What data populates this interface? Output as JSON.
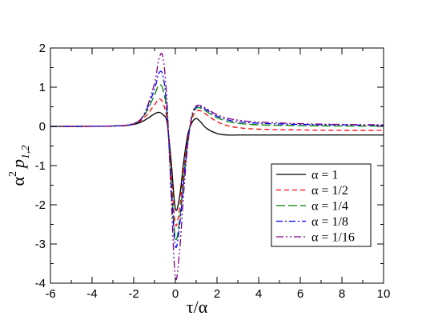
{
  "chart_data": {
    "type": "line",
    "xlabel": "τ/α",
    "ylabel": {
      "base": "α",
      "sup": "2",
      "main": "p",
      "sub": "1,2"
    },
    "xlim": [
      -6,
      10
    ],
    "ylim": [
      -4,
      2
    ],
    "xticks": [
      -6,
      -4,
      -2,
      0,
      2,
      4,
      6,
      8,
      10
    ],
    "yticks": [
      -4,
      -3,
      -2,
      -1,
      0,
      1,
      2
    ],
    "grid": false,
    "legend_position": "right",
    "series": [
      {
        "name": "α = 1",
        "color": "#000000",
        "dash": "solid",
        "x": [
          -6,
          -3,
          -2,
          -1.5,
          -1,
          -0.8,
          -0.6,
          -0.4,
          -0.2,
          0,
          0.2,
          0.4,
          0.6,
          0.8,
          1,
          1.2,
          1.5,
          2,
          2.5,
          3,
          4,
          6,
          8,
          10
        ],
        "y": [
          0,
          0.01,
          0.05,
          0.15,
          0.32,
          0.36,
          0.3,
          0.1,
          -0.9,
          -2.1,
          -1.8,
          -0.9,
          -0.2,
          0.1,
          0.2,
          0.12,
          -0.05,
          -0.18,
          -0.22,
          -0.22,
          -0.22,
          -0.22,
          -0.22,
          -0.22
        ]
      },
      {
        "name": "α = 1/2",
        "color": "#ff0000",
        "dash": "dashed",
        "x": [
          -6,
          -3,
          -2,
          -1.5,
          -1,
          -0.8,
          -0.6,
          -0.4,
          -0.2,
          0,
          0.2,
          0.4,
          0.6,
          0.8,
          1,
          1.2,
          1.5,
          2,
          2.5,
          3,
          4,
          6,
          8,
          10
        ],
        "y": [
          0,
          0.01,
          0.06,
          0.22,
          0.55,
          0.7,
          0.6,
          0.15,
          -1.2,
          -2.5,
          -2.1,
          -1.1,
          -0.3,
          0.2,
          0.38,
          0.4,
          0.3,
          0.12,
          0.02,
          -0.03,
          -0.07,
          -0.09,
          -0.1,
          -0.1
        ]
      },
      {
        "name": "α = 1/4",
        "color": "#008000",
        "dash": "longdash",
        "x": [
          -6,
          -3,
          -2,
          -1.5,
          -1,
          -0.8,
          -0.6,
          -0.4,
          -0.2,
          0,
          0.2,
          0.4,
          0.6,
          0.8,
          1,
          1.2,
          1.5,
          2,
          2.5,
          3,
          4,
          6,
          8,
          10
        ],
        "y": [
          0,
          0.01,
          0.07,
          0.28,
          0.8,
          1.05,
          0.95,
          0.3,
          -1.4,
          -2.85,
          -2.4,
          -1.3,
          -0.35,
          0.25,
          0.46,
          0.47,
          0.38,
          0.22,
          0.13,
          0.08,
          0.04,
          0.02,
          0.01,
          0.01
        ]
      },
      {
        "name": "α = 1/8",
        "color": "#0000ff",
        "dash": "dashdot",
        "x": [
          -6,
          -3,
          -2,
          -1.5,
          -1,
          -0.8,
          -0.6,
          -0.4,
          -0.2,
          0,
          0.2,
          0.4,
          0.6,
          0.8,
          1,
          1.2,
          1.5,
          2,
          2.5,
          3,
          4,
          6,
          8,
          10
        ],
        "y": [
          0,
          0.01,
          0.07,
          0.3,
          0.95,
          1.35,
          1.3,
          0.4,
          -1.55,
          -3.05,
          -2.55,
          -1.4,
          -0.4,
          0.28,
          0.5,
          0.5,
          0.42,
          0.26,
          0.17,
          0.12,
          0.08,
          0.05,
          0.04,
          0.03
        ]
      },
      {
        "name": "α = 1/16",
        "color": "#800080",
        "dash": "dashdotdot",
        "x": [
          -6,
          -3,
          -2,
          -1.5,
          -1,
          -0.8,
          -0.6,
          -0.4,
          -0.2,
          0,
          0.2,
          0.4,
          0.6,
          0.8,
          1,
          1.2,
          1.5,
          2,
          2.5,
          3,
          4,
          6,
          8,
          10
        ],
        "y": [
          0,
          0.01,
          0.08,
          0.32,
          1.1,
          1.7,
          1.78,
          0.6,
          -1.8,
          -3.85,
          -3.2,
          -1.7,
          -0.45,
          0.3,
          0.52,
          0.53,
          0.45,
          0.3,
          0.21,
          0.16,
          0.11,
          0.07,
          0.05,
          0.04
        ]
      }
    ]
  }
}
